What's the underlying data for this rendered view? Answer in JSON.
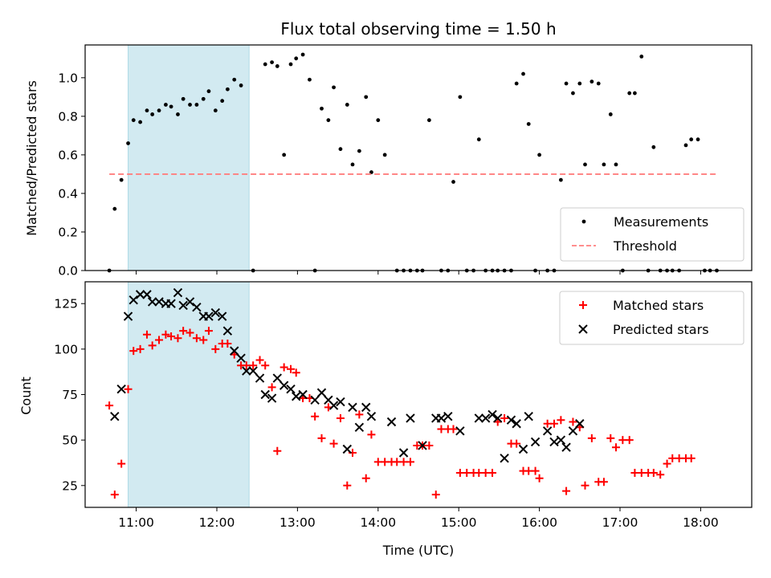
{
  "chart_data": [
    {
      "type": "scatter",
      "title": "Flux total observing time = 1.50 h",
      "xlabel": "",
      "ylabel": "Matched/Predicted stars",
      "xlim": [
        "10:22",
        "18:38"
      ],
      "ylim": [
        0,
        1.17
      ],
      "yticks": [
        "0.0",
        "0.2",
        "0.4",
        "0.6",
        "0.8",
        "1.0"
      ],
      "highlight_span": {
        "from": "10:54",
        "to": "12:24",
        "color": "#add8e6"
      },
      "legend": {
        "position": "lower-right",
        "entries": [
          "Measurements",
          "Threshold"
        ]
      },
      "series": [
        {
          "name": "Measurements",
          "marker": "dot",
          "color": "#000000",
          "points": [
            [
              "10:40",
              0.0
            ],
            [
              "10:44",
              0.32
            ],
            [
              "10:49",
              0.47
            ],
            [
              "10:54",
              0.66
            ],
            [
              "10:58",
              0.78
            ],
            [
              "11:03",
              0.77
            ],
            [
              "11:08",
              0.83
            ],
            [
              "11:12",
              0.81
            ],
            [
              "11:17",
              0.83
            ],
            [
              "11:22",
              0.86
            ],
            [
              "11:26",
              0.85
            ],
            [
              "11:31",
              0.81
            ],
            [
              "11:35",
              0.89
            ],
            [
              "11:40",
              0.86
            ],
            [
              "11:45",
              0.86
            ],
            [
              "11:50",
              0.89
            ],
            [
              "11:54",
              0.93
            ],
            [
              "11:59",
              0.83
            ],
            [
              "12:04",
              0.88
            ],
            [
              "12:08",
              0.94
            ],
            [
              "12:13",
              0.99
            ],
            [
              "12:18",
              0.96
            ],
            [
              "12:27",
              0.0
            ],
            [
              "12:36",
              1.07
            ],
            [
              "12:41",
              1.08
            ],
            [
              "12:45",
              1.06
            ],
            [
              "12:50",
              0.6
            ],
            [
              "12:55",
              1.07
            ],
            [
              "12:59",
              1.1
            ],
            [
              "13:04",
              1.12
            ],
            [
              "13:09",
              0.99
            ],
            [
              "13:13",
              0.0
            ],
            [
              "13:18",
              0.84
            ],
            [
              "13:23",
              0.78
            ],
            [
              "13:27",
              0.95
            ],
            [
              "13:32",
              0.63
            ],
            [
              "13:37",
              0.86
            ],
            [
              "13:41",
              0.55
            ],
            [
              "13:46",
              0.62
            ],
            [
              "13:51",
              0.9
            ],
            [
              "13:55",
              0.51
            ],
            [
              "14:00",
              0.78
            ],
            [
              "14:05",
              0.6
            ],
            [
              "14:14",
              0.0
            ],
            [
              "14:19",
              0.0
            ],
            [
              "14:24",
              0.0
            ],
            [
              "14:29",
              0.0
            ],
            [
              "14:33",
              0.0
            ],
            [
              "14:38",
              0.78
            ],
            [
              "14:47",
              0.0
            ],
            [
              "14:52",
              0.0
            ],
            [
              "14:56",
              0.46
            ],
            [
              "15:01",
              0.9
            ],
            [
              "15:06",
              0.0
            ],
            [
              "15:11",
              0.0
            ],
            [
              "15:15",
              0.68
            ],
            [
              "15:20",
              0.0
            ],
            [
              "15:25",
              0.0
            ],
            [
              "15:29",
              0.0
            ],
            [
              "15:34",
              0.0
            ],
            [
              "15:39",
              0.0
            ],
            [
              "15:43",
              0.97
            ],
            [
              "15:48",
              1.02
            ],
            [
              "15:52",
              0.76
            ],
            [
              "15:57",
              0.0
            ],
            [
              "16:00",
              0.6
            ],
            [
              "16:06",
              0.0
            ],
            [
              "16:11",
              0.0
            ],
            [
              "16:16",
              0.47
            ],
            [
              "16:20",
              0.97
            ],
            [
              "16:25",
              0.92
            ],
            [
              "16:30",
              0.97
            ],
            [
              "16:34",
              0.55
            ],
            [
              "16:39",
              0.98
            ],
            [
              "16:44",
              0.97
            ],
            [
              "16:48",
              0.55
            ],
            [
              "16:53",
              0.81
            ],
            [
              "16:57",
              0.55
            ],
            [
              "17:02",
              0.0
            ],
            [
              "17:07",
              0.92
            ],
            [
              "17:11",
              0.92
            ],
            [
              "17:16",
              1.11
            ],
            [
              "17:21",
              0.0
            ],
            [
              "17:25",
              0.64
            ],
            [
              "17:30",
              0.0
            ],
            [
              "17:35",
              0.0
            ],
            [
              "17:39",
              0.0
            ],
            [
              "17:44",
              0.0
            ],
            [
              "17:49",
              0.65
            ],
            [
              "17:53",
              0.68
            ],
            [
              "17:58",
              0.68
            ],
            [
              "18:03",
              0.0
            ],
            [
              "18:07",
              0.0
            ],
            [
              "18:12",
              0.0
            ]
          ]
        },
        {
          "name": "Threshold",
          "marker": "dashed-line",
          "color": "#ff7f7f",
          "points": [
            [
              "10:40",
              0.5
            ],
            [
              "18:12",
              0.5
            ]
          ]
        }
      ]
    },
    {
      "type": "scatter",
      "title": "",
      "xlabel": "Time (UTC)",
      "ylabel": "Count",
      "xlim": [
        "10:22",
        "18:38"
      ],
      "ylim": [
        13,
        137
      ],
      "yticks": [
        "25",
        "50",
        "75",
        "100",
        "125"
      ],
      "xticks": [
        "11:00",
        "12:00",
        "13:00",
        "14:00",
        "15:00",
        "16:00",
        "17:00",
        "18:00"
      ],
      "highlight_span": {
        "from": "10:54",
        "to": "12:24",
        "color": "#add8e6"
      },
      "legend": {
        "position": "top-right",
        "entries": [
          "Matched stars",
          "Predicted stars"
        ]
      },
      "series": [
        {
          "name": "Matched stars",
          "marker": "plus",
          "color": "#ff0000",
          "points": [
            [
              "10:40",
              69
            ],
            [
              "10:44",
              20
            ],
            [
              "10:49",
              37
            ],
            [
              "10:54",
              78
            ],
            [
              "10:58",
              99
            ],
            [
              "11:03",
              100
            ],
            [
              "11:08",
              108
            ],
            [
              "11:12",
              102
            ],
            [
              "11:17",
              105
            ],
            [
              "11:22",
              108
            ],
            [
              "11:26",
              107
            ],
            [
              "11:31",
              106
            ],
            [
              "11:35",
              110
            ],
            [
              "11:40",
              109
            ],
            [
              "11:45",
              106
            ],
            [
              "11:50",
              105
            ],
            [
              "11:54",
              110
            ],
            [
              "11:59",
              100
            ],
            [
              "12:04",
              103
            ],
            [
              "12:08",
              103
            ],
            [
              "12:13",
              97
            ],
            [
              "12:18",
              91
            ],
            [
              "12:22",
              91
            ],
            [
              "12:27",
              91
            ],
            [
              "12:32",
              94
            ],
            [
              "12:36",
              91
            ],
            [
              "12:41",
              79
            ],
            [
              "12:45",
              44
            ],
            [
              "12:50",
              90
            ],
            [
              "12:55",
              89
            ],
            [
              "12:59",
              87
            ],
            [
              "13:04",
              73
            ],
            [
              "13:09",
              73
            ],
            [
              "13:13",
              63
            ],
            [
              "13:18",
              51
            ],
            [
              "13:23",
              68
            ],
            [
              "13:27",
              48
            ],
            [
              "13:32",
              62
            ],
            [
              "13:37",
              25
            ],
            [
              "13:41",
              43
            ],
            [
              "13:46",
              64
            ],
            [
              "13:51",
              29
            ],
            [
              "13:55",
              53
            ],
            [
              "14:00",
              38
            ],
            [
              "14:05",
              38
            ],
            [
              "14:10",
              38
            ],
            [
              "14:14",
              38
            ],
            [
              "14:19",
              38
            ],
            [
              "14:24",
              38
            ],
            [
              "14:29",
              47
            ],
            [
              "14:33",
              47
            ],
            [
              "14:38",
              47
            ],
            [
              "14:43",
              20
            ],
            [
              "14:47",
              56
            ],
            [
              "14:52",
              56
            ],
            [
              "14:56",
              56
            ],
            [
              "15:01",
              32
            ],
            [
              "15:06",
              32
            ],
            [
              "15:11",
              32
            ],
            [
              "15:15",
              32
            ],
            [
              "15:20",
              32
            ],
            [
              "15:25",
              32
            ],
            [
              "15:29",
              60
            ],
            [
              "15:34",
              62
            ],
            [
              "15:39",
              48
            ],
            [
              "15:43",
              48
            ],
            [
              "15:48",
              33
            ],
            [
              "15:52",
              33
            ],
            [
              "15:57",
              33
            ],
            [
              "16:00",
              29
            ],
            [
              "16:06",
              59
            ],
            [
              "16:11",
              59
            ],
            [
              "16:16",
              61
            ],
            [
              "16:20",
              22
            ],
            [
              "16:25",
              60
            ],
            [
              "16:30",
              57
            ],
            [
              "16:34",
              25
            ],
            [
              "16:39",
              51
            ],
            [
              "16:44",
              27
            ],
            [
              "16:48",
              27
            ],
            [
              "16:53",
              51
            ],
            [
              "16:57",
              46
            ],
            [
              "17:02",
              50
            ],
            [
              "17:07",
              50
            ],
            [
              "17:11",
              32
            ],
            [
              "17:16",
              32
            ],
            [
              "17:21",
              32
            ],
            [
              "17:25",
              32
            ],
            [
              "17:30",
              31
            ],
            [
              "17:35",
              37
            ],
            [
              "17:39",
              40
            ],
            [
              "17:44",
              40
            ],
            [
              "17:49",
              40
            ],
            [
              "17:53",
              40
            ]
          ]
        },
        {
          "name": "Predicted stars",
          "marker": "cross",
          "color": "#000000",
          "points": [
            [
              "10:44",
              63
            ],
            [
              "10:49",
              78
            ],
            [
              "10:54",
              118
            ],
            [
              "10:58",
              127
            ],
            [
              "11:03",
              130
            ],
            [
              "11:08",
              130
            ],
            [
              "11:12",
              126
            ],
            [
              "11:17",
              126
            ],
            [
              "11:22",
              125
            ],
            [
              "11:26",
              125
            ],
            [
              "11:31",
              131
            ],
            [
              "11:35",
              124
            ],
            [
              "11:40",
              126
            ],
            [
              "11:45",
              123
            ],
            [
              "11:50",
              118
            ],
            [
              "11:54",
              118
            ],
            [
              "11:59",
              120
            ],
            [
              "12:04",
              118
            ],
            [
              "12:08",
              110
            ],
            [
              "12:13",
              99
            ],
            [
              "12:18",
              95
            ],
            [
              "12:22",
              88
            ],
            [
              "12:27",
              88
            ],
            [
              "12:32",
              84
            ],
            [
              "12:36",
              75
            ],
            [
              "12:41",
              73
            ],
            [
              "12:45",
              84
            ],
            [
              "12:50",
              80
            ],
            [
              "12:55",
              78
            ],
            [
              "12:59",
              74
            ],
            [
              "13:04",
              75
            ],
            [
              "13:13",
              72
            ],
            [
              "13:18",
              76
            ],
            [
              "13:23",
              72
            ],
            [
              "13:27",
              69
            ],
            [
              "13:32",
              71
            ],
            [
              "13:37",
              45
            ],
            [
              "13:41",
              68
            ],
            [
              "13:46",
              57
            ],
            [
              "13:51",
              68
            ],
            [
              "13:55",
              63
            ],
            [
              "14:10",
              60
            ],
            [
              "14:19",
              43
            ],
            [
              "14:24",
              62
            ],
            [
              "14:33",
              47
            ],
            [
              "14:43",
              62
            ],
            [
              "14:47",
              62
            ],
            [
              "14:52",
              63
            ],
            [
              "15:01",
              55
            ],
            [
              "15:15",
              62
            ],
            [
              "15:20",
              62
            ],
            [
              "15:25",
              64
            ],
            [
              "15:29",
              62
            ],
            [
              "15:34",
              40
            ],
            [
              "15:39",
              61
            ],
            [
              "15:43",
              59
            ],
            [
              "15:48",
              45
            ],
            [
              "15:52",
              63
            ],
            [
              "15:57",
              49
            ],
            [
              "16:06",
              55
            ],
            [
              "16:11",
              49
            ],
            [
              "16:16",
              50
            ],
            [
              "16:20",
              46
            ],
            [
              "16:25",
              55
            ],
            [
              "16:30",
              59
            ]
          ]
        }
      ]
    }
  ]
}
